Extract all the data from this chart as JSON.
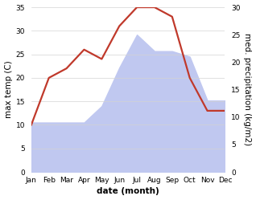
{
  "months": [
    "Jan",
    "Feb",
    "Mar",
    "Apr",
    "May",
    "Jun",
    "Jul",
    "Aug",
    "Sep",
    "Oct",
    "Nov",
    "Dec"
  ],
  "temperature": [
    10,
    20,
    22,
    26,
    24,
    31,
    35,
    35,
    33,
    20,
    13,
    13
  ],
  "precipitation": [
    9,
    9,
    9,
    9,
    12,
    19,
    25,
    22,
    22,
    21,
    13,
    13
  ],
  "temp_color": "#c0392b",
  "precip_color": "#c0c8f0",
  "background_color": "#ffffff",
  "ylabel_left": "max temp (C)",
  "ylabel_right": "med. precipitation (kg/m2)",
  "xlabel": "date (month)",
  "ylim_left": [
    0,
    35
  ],
  "ylim_right": [
    0,
    30
  ],
  "axis_fontsize": 7.5,
  "tick_fontsize": 6.5,
  "line_width": 1.6
}
